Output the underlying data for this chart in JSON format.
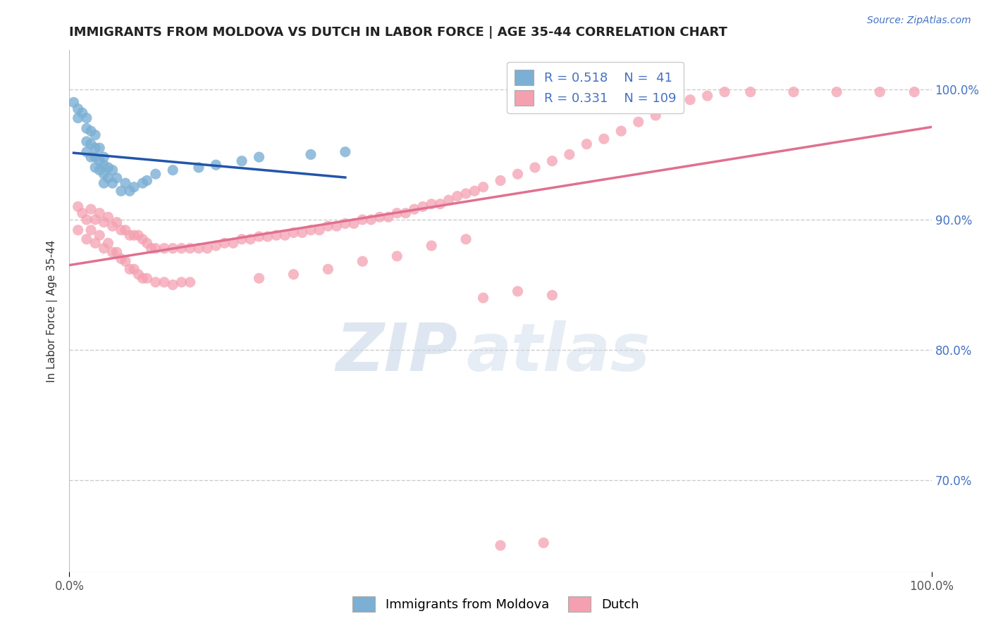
{
  "title": "IMMIGRANTS FROM MOLDOVA VS DUTCH IN LABOR FORCE | AGE 35-44 CORRELATION CHART",
  "source": "Source: ZipAtlas.com",
  "ylabel": "In Labor Force | Age 35-44",
  "xlim": [
    0.0,
    1.0
  ],
  "ylim": [
    0.63,
    1.03
  ],
  "y_ticks": [
    0.7,
    0.8,
    0.9,
    1.0
  ],
  "y_tick_labels": [
    "70.0%",
    "80.0%",
    "90.0%",
    "100.0%"
  ],
  "x_tick_labels": [
    "0.0%",
    "100.0%"
  ],
  "moldova_R": 0.518,
  "moldova_N": 41,
  "dutch_R": 0.331,
  "dutch_N": 109,
  "moldova_color": "#7bafd4",
  "dutch_color": "#f4a0b0",
  "moldova_line_color": "#2255aa",
  "dutch_line_color": "#e07090",
  "moldova_scatter_x": [
    0.005,
    0.01,
    0.01,
    0.015,
    0.02,
    0.02,
    0.02,
    0.02,
    0.025,
    0.025,
    0.025,
    0.03,
    0.03,
    0.03,
    0.03,
    0.035,
    0.035,
    0.035,
    0.04,
    0.04,
    0.04,
    0.04,
    0.045,
    0.045,
    0.05,
    0.05,
    0.055,
    0.06,
    0.065,
    0.07,
    0.075,
    0.085,
    0.09,
    0.1,
    0.12,
    0.15,
    0.17,
    0.2,
    0.22,
    0.28,
    0.32
  ],
  "moldova_scatter_y": [
    0.99,
    0.985,
    0.978,
    0.982,
    0.978,
    0.97,
    0.96,
    0.952,
    0.968,
    0.958,
    0.948,
    0.965,
    0.955,
    0.948,
    0.94,
    0.955,
    0.945,
    0.938,
    0.948,
    0.942,
    0.935,
    0.928,
    0.94,
    0.932,
    0.938,
    0.928,
    0.932,
    0.922,
    0.928,
    0.922,
    0.925,
    0.928,
    0.93,
    0.935,
    0.938,
    0.94,
    0.942,
    0.945,
    0.948,
    0.95,
    0.952
  ],
  "dutch_scatter_x": [
    0.01,
    0.01,
    0.015,
    0.02,
    0.02,
    0.025,
    0.025,
    0.03,
    0.03,
    0.035,
    0.035,
    0.04,
    0.04,
    0.045,
    0.045,
    0.05,
    0.05,
    0.055,
    0.055,
    0.06,
    0.06,
    0.065,
    0.065,
    0.07,
    0.07,
    0.075,
    0.075,
    0.08,
    0.08,
    0.085,
    0.085,
    0.09,
    0.09,
    0.095,
    0.1,
    0.1,
    0.11,
    0.11,
    0.12,
    0.12,
    0.13,
    0.13,
    0.14,
    0.14,
    0.15,
    0.16,
    0.17,
    0.18,
    0.19,
    0.2,
    0.21,
    0.22,
    0.23,
    0.24,
    0.25,
    0.26,
    0.27,
    0.28,
    0.29,
    0.3,
    0.31,
    0.32,
    0.33,
    0.34,
    0.35,
    0.36,
    0.37,
    0.38,
    0.39,
    0.4,
    0.41,
    0.42,
    0.43,
    0.44,
    0.45,
    0.46,
    0.47,
    0.48,
    0.5,
    0.52,
    0.54,
    0.56,
    0.58,
    0.6,
    0.62,
    0.64,
    0.66,
    0.68,
    0.7,
    0.72,
    0.74,
    0.76,
    0.79,
    0.84,
    0.89,
    0.94,
    0.98,
    0.5,
    0.55,
    0.48,
    0.52,
    0.56,
    0.22,
    0.26,
    0.3,
    0.34,
    0.38,
    0.42,
    0.46
  ],
  "dutch_scatter_y": [
    0.91,
    0.892,
    0.905,
    0.9,
    0.885,
    0.908,
    0.892,
    0.9,
    0.882,
    0.905,
    0.888,
    0.898,
    0.878,
    0.902,
    0.882,
    0.895,
    0.875,
    0.898,
    0.875,
    0.892,
    0.87,
    0.892,
    0.868,
    0.888,
    0.862,
    0.888,
    0.862,
    0.888,
    0.858,
    0.885,
    0.855,
    0.882,
    0.855,
    0.878,
    0.878,
    0.852,
    0.878,
    0.852,
    0.878,
    0.85,
    0.878,
    0.852,
    0.878,
    0.852,
    0.878,
    0.878,
    0.88,
    0.882,
    0.882,
    0.885,
    0.885,
    0.887,
    0.887,
    0.888,
    0.888,
    0.89,
    0.89,
    0.892,
    0.892,
    0.895,
    0.895,
    0.897,
    0.897,
    0.9,
    0.9,
    0.902,
    0.902,
    0.905,
    0.905,
    0.908,
    0.91,
    0.912,
    0.912,
    0.915,
    0.918,
    0.92,
    0.922,
    0.925,
    0.93,
    0.935,
    0.94,
    0.945,
    0.95,
    0.958,
    0.962,
    0.968,
    0.975,
    0.98,
    0.988,
    0.992,
    0.995,
    0.998,
    0.998,
    0.998,
    0.998,
    0.998,
    0.998,
    0.65,
    0.652,
    0.84,
    0.845,
    0.842,
    0.855,
    0.858,
    0.862,
    0.868,
    0.872,
    0.88,
    0.885
  ],
  "watermark_zip": "ZIP",
  "watermark_atlas": "atlas",
  "background_color": "#ffffff",
  "grid_color": "#cccccc",
  "title_color": "#222222",
  "axis_label_color": "#333333",
  "right_tick_color": "#4472c4",
  "legend_text_color": "#4472c4"
}
